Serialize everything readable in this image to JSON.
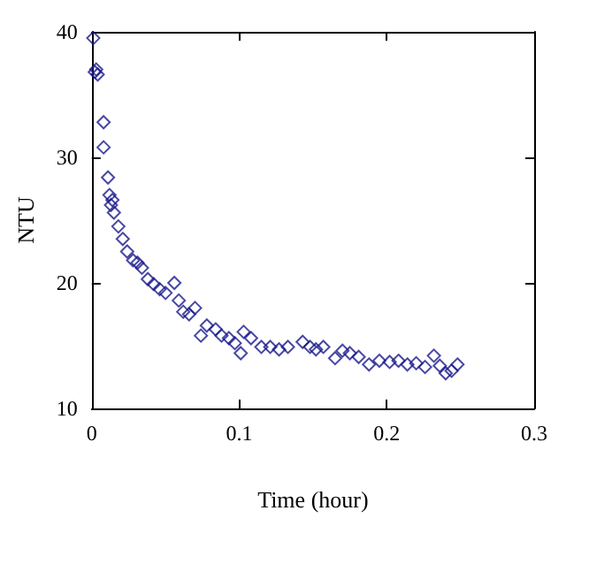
{
  "chart_data": {
    "type": "scatter",
    "xlabel": "Time (hour)",
    "ylabel": "NTU",
    "xlim": [
      0,
      0.3
    ],
    "xticks": [
      0,
      0.1,
      0.2,
      0.3
    ],
    "ylim": [
      10,
      40
    ],
    "yticks": [
      10,
      20,
      30,
      40
    ],
    "grid": false,
    "marker": "diamond",
    "series": [
      {
        "color": "#1a1a8c",
        "x": [
          0.001,
          0.002,
          0.003,
          0.004,
          0.008,
          0.008,
          0.011,
          0.012,
          0.013,
          0.014,
          0.015,
          0.018,
          0.021,
          0.024,
          0.028,
          0.031,
          0.034,
          0.038,
          0.042,
          0.046,
          0.05,
          0.056,
          0.059,
          0.062,
          0.066,
          0.07,
          0.074,
          0.078,
          0.084,
          0.088,
          0.093,
          0.097,
          0.101,
          0.103,
          0.108,
          0.115,
          0.121,
          0.127,
          0.133,
          0.143,
          0.148,
          0.152,
          0.157,
          0.165,
          0.17,
          0.175,
          0.181,
          0.188,
          0.195,
          0.202,
          0.208,
          0.214,
          0.22,
          0.226,
          0.232,
          0.236,
          0.24,
          0.244,
          0.248
        ],
        "values": [
          39.5,
          36.8,
          37,
          36.6,
          32.8,
          30.8,
          28.4,
          27,
          26.2,
          26.6,
          25.6,
          24.5,
          23.5,
          22.5,
          21.8,
          21.6,
          21.2,
          20.3,
          19.9,
          19.5,
          19.2,
          20,
          18.6,
          17.7,
          17.5,
          18,
          15.8,
          16.6,
          16.3,
          15.8,
          15.6,
          15.2,
          14.4,
          16.1,
          15.6,
          14.9,
          14.9,
          14.7,
          14.9,
          15.3,
          14.9,
          14.7,
          14.9,
          14,
          14.6,
          14.4,
          14.1,
          13.5,
          13.8,
          13.7,
          13.8,
          13.5,
          13.6,
          13.3,
          14.2,
          13.4,
          12.8,
          13,
          13.5
        ]
      }
    ]
  }
}
